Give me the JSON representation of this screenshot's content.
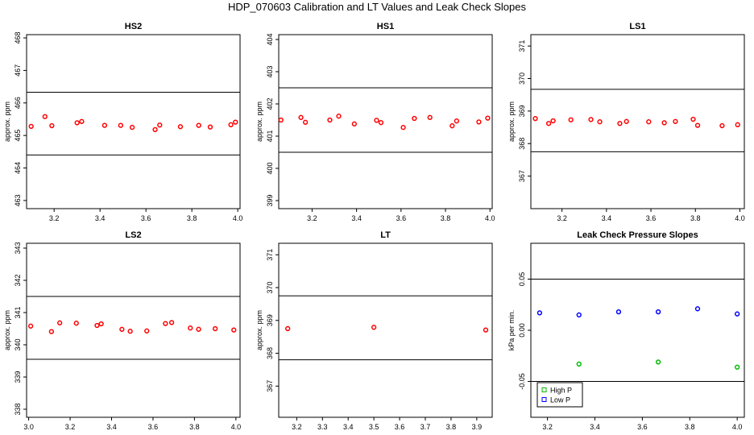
{
  "page": {
    "title": "HDP_070603  Calibration and LT Values and Leak Check Slopes"
  },
  "colors": {
    "red": "#ff0000",
    "green": "#00bb00",
    "blue": "#0000ff",
    "black": "#000000"
  },
  "chart_data": [
    {
      "type": "scatter",
      "title": "HS2",
      "ylabel": "approx. ppm",
      "xlim": [
        3.08,
        4.01
      ],
      "ylim": [
        462.75,
        468.1
      ],
      "xticks": [
        "3.2",
        "3.4",
        "3.6",
        "3.8",
        "4.0"
      ],
      "yticks": [
        "463",
        "464",
        "465",
        "466",
        "467",
        "468"
      ],
      "hlines": [
        464.4,
        466.33
      ],
      "series": [
        {
          "name": "HS2",
          "color": "red",
          "x": [
            3.1,
            3.16,
            3.19,
            3.3,
            3.32,
            3.42,
            3.49,
            3.54,
            3.64,
            3.66,
            3.75,
            3.83,
            3.88,
            3.97,
            3.99
          ],
          "y": [
            465.28,
            465.58,
            465.3,
            465.39,
            465.43,
            465.31,
            465.31,
            465.25,
            465.18,
            465.32,
            465.27,
            465.31,
            465.26,
            465.33,
            465.41
          ]
        }
      ]
    },
    {
      "type": "scatter",
      "title": "HS1",
      "ylabel": "approx. ppm",
      "xlim": [
        3.05,
        4.01
      ],
      "ylim": [
        398.75,
        404.15
      ],
      "xticks": [
        "3.2",
        "3.4",
        "3.6",
        "3.8",
        "4.0"
      ],
      "yticks": [
        "399",
        "400",
        "401",
        "402",
        "403",
        "404"
      ],
      "hlines": [
        400.5,
        402.5
      ],
      "series": [
        {
          "name": "HS1",
          "color": "red",
          "x": [
            3.06,
            3.15,
            3.17,
            3.28,
            3.32,
            3.39,
            3.49,
            3.51,
            3.61,
            3.66,
            3.73,
            3.83,
            3.85,
            3.95,
            3.99
          ],
          "y": [
            401.5,
            401.58,
            401.43,
            401.5,
            401.62,
            401.38,
            401.49,
            401.42,
            401.27,
            401.55,
            401.58,
            401.32,
            401.47,
            401.44,
            401.56
          ]
        }
      ]
    },
    {
      "type": "scatter",
      "title": "LS1",
      "ylabel": "approx. ppm",
      "xlim": [
        3.06,
        4.02
      ],
      "ylim": [
        366.0,
        371.35
      ],
      "xticks": [
        "3.2",
        "3.4",
        "3.6",
        "3.8",
        "4.0"
      ],
      "yticks": [
        "367",
        "368",
        "369",
        "370",
        "371"
      ],
      "hlines": [
        367.75,
        369.67
      ],
      "series": [
        {
          "name": "LS1",
          "color": "red",
          "x": [
            3.08,
            3.14,
            3.16,
            3.24,
            3.33,
            3.37,
            3.46,
            3.49,
            3.59,
            3.66,
            3.71,
            3.79,
            3.81,
            3.92,
            3.99
          ],
          "y": [
            368.77,
            368.62,
            368.7,
            368.73,
            368.74,
            368.67,
            368.62,
            368.68,
            368.67,
            368.64,
            368.68,
            368.75,
            368.56,
            368.55,
            368.58
          ]
        }
      ]
    },
    {
      "type": "scatter",
      "title": "LS2",
      "ylabel": "approx. ppm",
      "xlim": [
        2.99,
        4.02
      ],
      "ylim": [
        337.75,
        343.15
      ],
      "xticks": [
        "3.0",
        "3.2",
        "3.4",
        "3.6",
        "3.8",
        "4.0"
      ],
      "yticks": [
        "338",
        "339",
        "340",
        "341",
        "342",
        "343"
      ],
      "hlines": [
        339.55,
        341.5
      ],
      "series": [
        {
          "name": "LS2",
          "color": "red",
          "x": [
            3.01,
            3.11,
            3.15,
            3.23,
            3.33,
            3.35,
            3.45,
            3.49,
            3.57,
            3.66,
            3.69,
            3.78,
            3.82,
            3.9,
            3.99
          ],
          "y": [
            340.58,
            340.41,
            340.68,
            340.67,
            340.6,
            340.65,
            340.48,
            340.42,
            340.43,
            340.66,
            340.69,
            340.52,
            340.48,
            340.5,
            340.46
          ]
        }
      ]
    },
    {
      "type": "scatter",
      "title": "LT",
      "ylabel": "approx. ppm",
      "xlim": [
        3.13,
        3.96
      ],
      "ylim": [
        366.05,
        371.35
      ],
      "xticks": [
        "3.2",
        "3.3",
        "3.4",
        "3.5",
        "3.6",
        "3.7",
        "3.8",
        "3.9"
      ],
      "yticks": [
        "367",
        "368",
        "369",
        "370",
        "371"
      ],
      "hlines": [
        367.8,
        369.75
      ],
      "series": [
        {
          "name": "LT",
          "color": "red",
          "x": [
            3.165,
            3.5,
            3.935
          ],
          "y": [
            368.75,
            368.79,
            368.71
          ]
        }
      ]
    },
    {
      "type": "scatter",
      "title": "Leak Check Pressure Slopes",
      "ylabel": "kPa per min.",
      "xlim": [
        3.13,
        4.03
      ],
      "ylim": [
        -0.085,
        0.085
      ],
      "xticks": [
        "3.2",
        "3.4",
        "3.6",
        "3.8",
        "4.0"
      ],
      "yticks": [
        "-0.05",
        "0.00",
        "0.05"
      ],
      "hlines": [
        0.05,
        -0.05
      ],
      "legend": {
        "position": "bottom-left",
        "entries": [
          "High P",
          "Low P"
        ]
      },
      "series": [
        {
          "name": "High P",
          "color": "green",
          "x": [
            3.333,
            3.667,
            4.0
          ],
          "y": [
            -0.033,
            -0.031,
            -0.036
          ]
        },
        {
          "name": "Low P",
          "color": "blue",
          "x": [
            3.167,
            3.333,
            3.5,
            3.667,
            3.833,
            4.0
          ],
          "y": [
            0.017,
            0.015,
            0.018,
            0.018,
            0.021,
            0.016
          ]
        }
      ]
    }
  ]
}
